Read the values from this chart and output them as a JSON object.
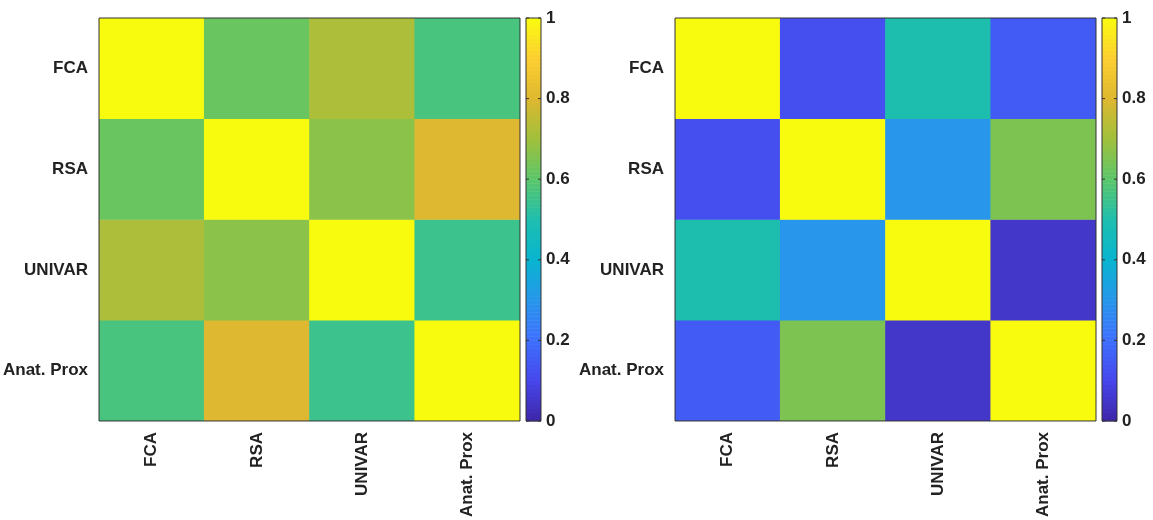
{
  "chart_data": [
    {
      "type": "heatmap",
      "categories": [
        "FCA",
        "RSA",
        "UNIVAR",
        "Anat. Prox"
      ],
      "y_categories": [
        "FCA",
        "RSA",
        "UNIVAR",
        "Anat. Prox"
      ],
      "cells": [
        [
          1,
          0.62,
          0.72,
          0.57
        ],
        [
          0.62,
          1,
          0.67,
          0.8
        ],
        [
          0.72,
          0.67,
          1,
          0.55
        ],
        [
          0.57,
          0.8,
          0.55,
          1
        ]
      ],
      "clim": [
        0,
        1
      ],
      "cticks": [
        0,
        0.2,
        0.4,
        0.6,
        0.8,
        1
      ]
    },
    {
      "type": "heatmap",
      "categories": [
        "FCA",
        "RSA",
        "UNIVAR",
        "Anat. Prox"
      ],
      "y_categories": [
        "FCA",
        "RSA",
        "UNIVAR",
        "Anat. Prox"
      ],
      "cells": [
        [
          1,
          0.12,
          0.5,
          0.15
        ],
        [
          0.12,
          1,
          0.3,
          0.65
        ],
        [
          0.5,
          0.3,
          1,
          0.05
        ],
        [
          0.15,
          0.65,
          0.05,
          1
        ]
      ],
      "clim": [
        0,
        1
      ],
      "cticks": [
        0,
        0.2,
        0.4,
        0.6,
        0.8,
        1
      ]
    }
  ]
}
